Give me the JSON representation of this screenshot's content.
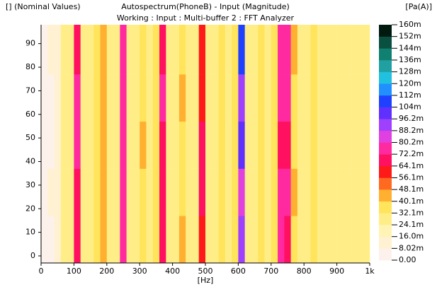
{
  "chart_data": {
    "type": "heatmap",
    "top_left_label": "[] (Nominal Values)",
    "title": "Autospectrum(PhoneB) - Input (Magnitude)",
    "subtitle": "Working : Input : Multi-buffer 2 : FFT Analyzer",
    "unit_label": "[Pa(A)]",
    "x_label": "[Hz]",
    "xlim": [
      0,
      1000
    ],
    "ylim": [
      -3,
      98
    ],
    "xticks": [
      0,
      100,
      200,
      300,
      400,
      500,
      600,
      700,
      800,
      900,
      {
        "value": 1000,
        "label": "1k"
      }
    ],
    "yticks": [
      0,
      10,
      20,
      30,
      40,
      50,
      60,
      70,
      80,
      90
    ],
    "xbins": [
      0,
      20,
      40,
      60,
      80,
      100,
      120,
      140,
      160,
      180,
      200,
      220,
      240,
      260,
      280,
      300,
      320,
      340,
      360,
      380,
      400,
      420,
      440,
      460,
      480,
      500,
      520,
      540,
      560,
      580,
      600,
      620,
      640,
      660,
      680,
      700,
      720,
      740,
      760,
      780,
      800,
      820,
      840,
      860,
      880,
      900,
      920,
      940,
      960,
      980,
      1000
    ],
    "ybins": [
      -3,
      17,
      37,
      57,
      77,
      98
    ],
    "values": [
      [
        0.005,
        0.008,
        0.015,
        0.028,
        0.03,
        0.072,
        0.032,
        0.03,
        0.036,
        0.046,
        0.03,
        0.032,
        0.078,
        0.03,
        0.028,
        0.04,
        0.03,
        0.034,
        0.07,
        0.03,
        0.028,
        0.042,
        0.028,
        0.03,
        0.062,
        0.03,
        0.028,
        0.036,
        0.03,
        0.034,
        0.095,
        0.03,
        0.028,
        0.036,
        0.03,
        0.034,
        0.078,
        0.072,
        0.04,
        0.032,
        0.03,
        0.036,
        0.028,
        0.03,
        0.026,
        0.028,
        0.025,
        0.03,
        0.026,
        0.028
      ],
      [
        0.006,
        0.009,
        0.016,
        0.027,
        0.031,
        0.07,
        0.03,
        0.029,
        0.034,
        0.044,
        0.031,
        0.03,
        0.074,
        0.031,
        0.029,
        0.038,
        0.031,
        0.036,
        0.066,
        0.03,
        0.029,
        0.04,
        0.03,
        0.029,
        0.068,
        0.031,
        0.029,
        0.04,
        0.03,
        0.036,
        0.088,
        0.031,
        0.029,
        0.034,
        0.031,
        0.036,
        0.074,
        0.076,
        0.042,
        0.03,
        0.031,
        0.034,
        0.029,
        0.031,
        0.027,
        0.029,
        0.026,
        0.028,
        0.027,
        0.027
      ],
      [
        0.005,
        0.008,
        0.014,
        0.029,
        0.03,
        0.076,
        0.031,
        0.03,
        0.038,
        0.042,
        0.03,
        0.031,
        0.08,
        0.03,
        0.028,
        0.041,
        0.03,
        0.033,
        0.072,
        0.031,
        0.028,
        0.039,
        0.028,
        0.03,
        0.07,
        0.03,
        0.028,
        0.037,
        0.031,
        0.033,
        0.1,
        0.03,
        0.028,
        0.037,
        0.03,
        0.033,
        0.072,
        0.07,
        0.038,
        0.032,
        0.03,
        0.035,
        0.028,
        0.03,
        0.026,
        0.028,
        0.025,
        0.03,
        0.026,
        0.028
      ],
      [
        0.006,
        0.008,
        0.015,
        0.028,
        0.03,
        0.073,
        0.03,
        0.031,
        0.035,
        0.045,
        0.031,
        0.032,
        0.076,
        0.031,
        0.029,
        0.039,
        0.03,
        0.035,
        0.074,
        0.03,
        0.029,
        0.041,
        0.029,
        0.031,
        0.064,
        0.031,
        0.029,
        0.038,
        0.03,
        0.035,
        0.092,
        0.031,
        0.029,
        0.035,
        0.031,
        0.035,
        0.08,
        0.074,
        0.04,
        0.031,
        0.031,
        0.036,
        0.029,
        0.031,
        0.027,
        0.029,
        0.026,
        0.029,
        0.027,
        0.028
      ],
      [
        0.005,
        0.009,
        0.016,
        0.027,
        0.031,
        0.071,
        0.031,
        0.03,
        0.036,
        0.043,
        0.03,
        0.031,
        0.075,
        0.03,
        0.028,
        0.04,
        0.031,
        0.034,
        0.068,
        0.031,
        0.028,
        0.04,
        0.028,
        0.03,
        0.063,
        0.03,
        0.028,
        0.036,
        0.031,
        0.034,
        0.105,
        0.03,
        0.028,
        0.036,
        0.03,
        0.034,
        0.076,
        0.073,
        0.041,
        0.032,
        0.03,
        0.035,
        0.028,
        0.03,
        0.026,
        0.028,
        0.025,
        0.03,
        0.026,
        0.028
      ]
    ],
    "colorbar": {
      "lim": [
        0,
        0.1604
      ],
      "ticks": [
        {
          "value": 0.1604,
          "label": "160m"
        },
        {
          "value": 0.15238,
          "label": "152m"
        },
        {
          "value": 0.14436,
          "label": "144m"
        },
        {
          "value": 0.13634,
          "label": "136m"
        },
        {
          "value": 0.12832,
          "label": "128m"
        },
        {
          "value": 0.1203,
          "label": "120m"
        },
        {
          "value": 0.11228,
          "label": "112m"
        },
        {
          "value": 0.10426,
          "label": "104m"
        },
        {
          "value": 0.09624,
          "label": "96.2m"
        },
        {
          "value": 0.08822,
          "label": "88.2m"
        },
        {
          "value": 0.0802,
          "label": "80.2m"
        },
        {
          "value": 0.07218,
          "label": "72.2m"
        },
        {
          "value": 0.06416,
          "label": "64.1m"
        },
        {
          "value": 0.05614,
          "label": "56.1m"
        },
        {
          "value": 0.04812,
          "label": "48.1m"
        },
        {
          "value": 0.0401,
          "label": "40.1m"
        },
        {
          "value": 0.03208,
          "label": "32.1m"
        },
        {
          "value": 0.02406,
          "label": "24.1m"
        },
        {
          "value": 0.01604,
          "label": "16.0m"
        },
        {
          "value": 0.00802,
          "label": "8.02m"
        },
        {
          "value": 0,
          "label": "0.00"
        }
      ],
      "colors": [
        "#fdf1ec",
        "#fff1d2",
        "#fff4b4",
        "#ffee88",
        "#ffe45c",
        "#ffb030",
        "#ff6a20",
        "#ff1a1a",
        "#ff1060",
        "#ff2aa0",
        "#e040e0",
        "#a040ff",
        "#6030ff",
        "#2040ff",
        "#2090ff",
        "#20c0e0",
        "#20a0a0",
        "#108070",
        "#0a5040",
        "#001a10"
      ]
    }
  }
}
